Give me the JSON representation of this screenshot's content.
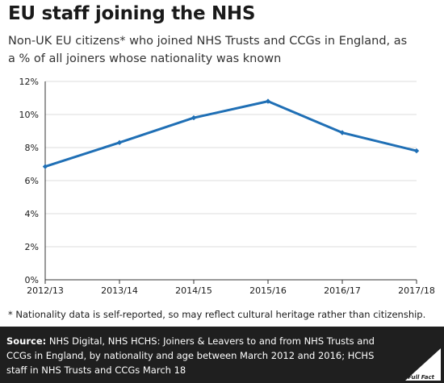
{
  "title": "EU staff joining the NHS",
  "subtitle_line1": "Non-UK EU citizens* who joined NHS Trusts and CCGs in England, as",
  "subtitle_line2": "a % of all joiners whose nationality was known",
  "footnote": "* Nationality data is self-reported, so may reflect cultural heritage rather than citizenship.",
  "source": {
    "label": "Source:",
    "line1": "NHS Digital, NHS HCHS: Joiners & Leavers to and from NHS Trusts and",
    "line2": "CCGs in England, by nationality and age between March 2012 and 2016; HCHS",
    "line3": "staff in NHS Trusts and CCGs March 18"
  },
  "logo": {
    "text": "Full Fact",
    "icon": "full-fact-logo-icon"
  },
  "chart_data": {
    "type": "line",
    "categories": [
      "2012/13",
      "2013/14",
      "2014/15",
      "2015/16",
      "2016/17",
      "2017/18"
    ],
    "series": [
      {
        "values": [
          6.85,
          8.3,
          9.8,
          10.8,
          8.9,
          7.8
        ],
        "color": "#1f6fb5"
      }
    ],
    "y_ticks": [
      "0%",
      "2%",
      "4%",
      "6%",
      "8%",
      "10%",
      "12%"
    ],
    "ylim": [
      0,
      12
    ],
    "grid": true,
    "legend": "none",
    "colors": {
      "line": "#1f6fb5",
      "grid": "#dddddd",
      "axis": "#333333"
    }
  }
}
